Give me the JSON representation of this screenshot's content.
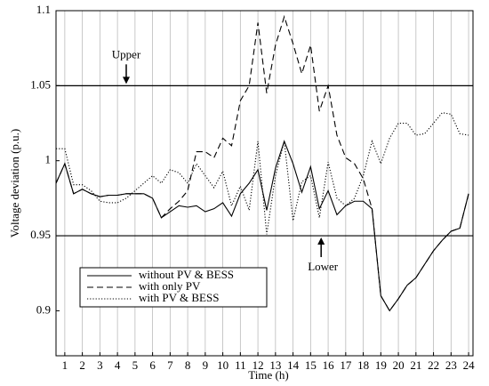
{
  "chart_data": {
    "type": "line",
    "xlabel": "Time (h)",
    "ylabel": "Voltage deviation (p.u.)",
    "x": [
      0.5,
      1,
      1.5,
      2,
      2.5,
      3,
      3.5,
      4,
      4.5,
      5,
      5.5,
      6,
      6.5,
      7,
      7.5,
      8,
      8.5,
      9,
      9.5,
      10,
      10.5,
      11,
      11.5,
      12,
      12.5,
      13,
      13.5,
      14,
      14.5,
      15,
      15.5,
      16,
      16.5,
      17,
      17.5,
      18,
      18.5,
      19,
      19.5,
      20,
      20.5,
      21,
      21.5,
      22,
      22.5,
      23,
      23.5,
      24
    ],
    "series": [
      {
        "name": "without PV & BESS",
        "color": "#000000",
        "dash": "solid",
        "values": [
          0.985,
          0.998,
          0.978,
          0.981,
          0.978,
          0.976,
          0.977,
          0.977,
          0.978,
          0.978,
          0.978,
          0.975,
          0.962,
          0.966,
          0.97,
          0.969,
          0.97,
          0.966,
          0.968,
          0.972,
          0.963,
          0.978,
          0.985,
          0.994,
          0.967,
          0.995,
          1.013,
          0.998,
          0.979,
          0.996,
          0.968,
          0.98,
          0.964,
          0.97,
          0.973,
          0.973,
          0.968,
          0.91,
          0.9,
          0.908,
          0.917,
          0.922,
          0.931,
          0.94,
          0.947,
          0.953,
          0.955,
          0.978
        ]
      },
      {
        "name": "with only PV",
        "color": "#000000",
        "dash": "dashed",
        "values": [
          0.985,
          0.998,
          0.978,
          0.981,
          0.978,
          0.976,
          0.977,
          0.977,
          0.978,
          0.978,
          0.978,
          0.975,
          0.962,
          0.968,
          0.973,
          0.98,
          1.006,
          1.006,
          1.002,
          1.015,
          1.01,
          1.04,
          1.05,
          1.092,
          1.045,
          1.077,
          1.096,
          1.078,
          1.058,
          1.077,
          1.033,
          1.05,
          1.017,
          1.002,
          0.998,
          0.988,
          0.968,
          0.91,
          0.9,
          0.908,
          0.917,
          0.922,
          0.931,
          0.94,
          0.947,
          0.953,
          0.955,
          0.978
        ]
      },
      {
        "name": "with PV & BESS",
        "color": "#000000",
        "dash": "dotted",
        "values": [
          1.008,
          1.008,
          0.984,
          0.984,
          0.98,
          0.973,
          0.972,
          0.972,
          0.975,
          0.98,
          0.985,
          0.99,
          0.985,
          0.994,
          0.992,
          0.985,
          0.998,
          0.99,
          0.982,
          0.993,
          0.97,
          0.983,
          0.967,
          1.013,
          0.951,
          0.99,
          1.013,
          0.96,
          0.986,
          0.99,
          0.962,
          0.999,
          0.975,
          0.97,
          0.975,
          0.99,
          1.013,
          0.998,
          1.015,
          1.025,
          1.025,
          1.017,
          1.018,
          1.025,
          1.032,
          1.031,
          1.018,
          1.017
        ]
      }
    ],
    "hlines": [
      {
        "value": 1.05,
        "label": "Upper"
      },
      {
        "value": 0.95,
        "label": "Lower"
      }
    ],
    "xlim": [
      0.5,
      24.25
    ],
    "xticks": [
      1,
      2,
      3,
      4,
      5,
      6,
      7,
      8,
      9,
      10,
      11,
      12,
      13,
      14,
      15,
      16,
      17,
      18,
      19,
      20,
      21,
      22,
      23,
      24
    ],
    "ylim": [
      0.87,
      1.1
    ],
    "yticks": [
      0.9,
      0.95,
      1,
      1.05,
      1.1
    ],
    "grid": "x",
    "legend": "lower left"
  }
}
